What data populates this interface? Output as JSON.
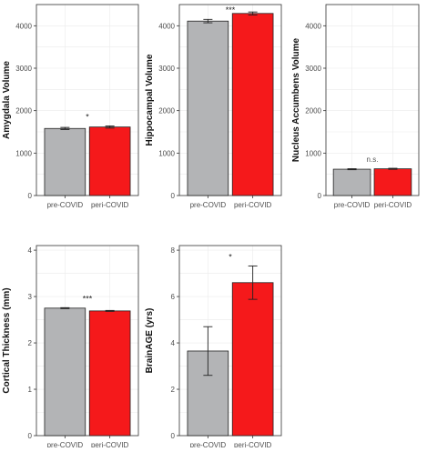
{
  "chart_data": [
    {
      "type": "bar",
      "categories": [
        "pre-COVID",
        "peri-COVID"
      ],
      "values": [
        1580,
        1615
      ],
      "errors": [
        25,
        25
      ],
      "ylabel": "Amygdala Volume",
      "ylim": [
        0,
        4500
      ],
      "yticks": [
        0,
        1000,
        2000,
        3000,
        4000
      ],
      "significance": "*",
      "colors": [
        "#b3b4b6",
        "#f5191b"
      ],
      "grid": true
    },
    {
      "type": "bar",
      "categories": [
        "pre-COVID",
        "peri-COVID"
      ],
      "values": [
        4110,
        4290
      ],
      "errors": [
        40,
        35
      ],
      "ylabel": "Hippocampal Volume",
      "ylim": [
        0,
        4500
      ],
      "yticks": [
        0,
        1000,
        2000,
        3000,
        4000
      ],
      "significance": "***",
      "colors": [
        "#b3b4b6",
        "#f5191b"
      ],
      "grid": true
    },
    {
      "type": "bar",
      "categories": [
        "pre-COVID",
        "peri-COVID"
      ],
      "values": [
        620,
        630
      ],
      "errors": [
        12,
        12
      ],
      "ylabel": "Nucleus Accumbens Volume",
      "ylim": [
        0,
        4500
      ],
      "yticks": [
        0,
        1000,
        2000,
        3000,
        4000
      ],
      "significance": "n.s.",
      "colors": [
        "#b3b4b6",
        "#f5191b"
      ],
      "grid": true
    },
    {
      "type": "bar",
      "categories": [
        "pre-COVID",
        "peri-COVID"
      ],
      "values": [
        2.75,
        2.69
      ],
      "errors": [
        0.01,
        0.01
      ],
      "ylabel": "Cortical Thickness (mm)",
      "ylim": [
        0,
        4.1
      ],
      "yticks": [
        0,
        1,
        2,
        3,
        4
      ],
      "significance": "***",
      "colors": [
        "#b3b4b6",
        "#f5191b"
      ],
      "grid": true
    },
    {
      "type": "bar",
      "categories": [
        "pre-COVID",
        "peri-COVID"
      ],
      "values": [
        3.65,
        6.6
      ],
      "errors": [
        1.05,
        0.72
      ],
      "ylabel": "BrainAGE (yrs)",
      "ylim": [
        0,
        8.2
      ],
      "yticks": [
        0,
        2,
        4,
        6,
        8
      ],
      "significance": "*",
      "colors": [
        "#b3b4b6",
        "#f5191b"
      ],
      "grid": true
    }
  ]
}
